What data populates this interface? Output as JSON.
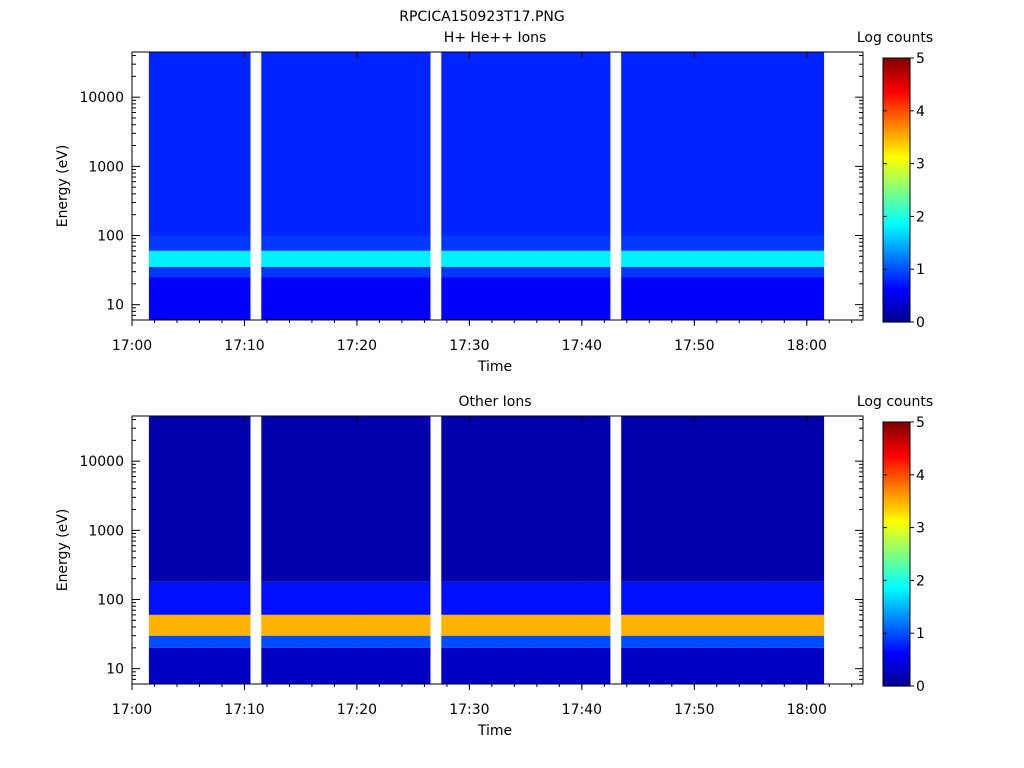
{
  "figure": {
    "title": "RPCICA150923T17.PNG"
  },
  "colors": {
    "background": "#ffffff",
    "colormap": [
      "#00008f",
      "#0000ff",
      "#0080ff",
      "#00ffff",
      "#80ff80",
      "#ffff00",
      "#ff8000",
      "#ff0000",
      "#800000"
    ]
  },
  "chart_data": [
    {
      "type": "heatmap",
      "title": "H+ He++ Ions",
      "xlabel": "Time",
      "ylabel": "Energy (eV)",
      "yscale": "log",
      "xlim": [
        "17:00",
        "18:05"
      ],
      "ylim": [
        6,
        45000
      ],
      "x_ticks": [
        "17:00",
        "17:10",
        "17:20",
        "17:30",
        "17:40",
        "17:50",
        "18:00"
      ],
      "y_ticks": [
        "10",
        "100",
        "1000",
        "10000"
      ],
      "colorbar": {
        "label": "Log counts",
        "range": [
          0,
          5
        ],
        "ticks": [
          "0",
          "1",
          "2",
          "3",
          "4",
          "5"
        ]
      },
      "time_columns": [
        "17:03",
        "17:06",
        "17:09",
        "17:13",
        "17:16",
        "17:19",
        "17:22",
        "17:25",
        "17:29",
        "17:32",
        "17:35",
        "17:38",
        "17:41",
        "17:45",
        "17:48",
        "17:51",
        "17:54",
        "17:57",
        "18:00"
      ],
      "energy_bands_eV": [
        {
          "range": [
            6,
            25
          ],
          "log_counts": 0.6
        },
        {
          "range": [
            25,
            35
          ],
          "log_counts": 0.9
        },
        {
          "range": [
            35,
            60
          ],
          "log_counts": 1.8
        },
        {
          "range": [
            60,
            100
          ],
          "log_counts": 0.9
        },
        {
          "range": [
            100,
            45000
          ],
          "log_counts": 0.8
        }
      ]
    },
    {
      "type": "heatmap",
      "title": "Other Ions",
      "xlabel": "Time",
      "ylabel": "Energy (eV)",
      "yscale": "log",
      "xlim": [
        "17:00",
        "18:05"
      ],
      "ylim": [
        6,
        45000
      ],
      "x_ticks": [
        "17:00",
        "17:10",
        "17:20",
        "17:30",
        "17:40",
        "17:50",
        "18:00"
      ],
      "y_ticks": [
        "10",
        "100",
        "1000",
        "10000"
      ],
      "colorbar": {
        "label": "Log counts",
        "range": [
          0,
          5
        ],
        "ticks": [
          "0",
          "1",
          "2",
          "3",
          "4",
          "5"
        ]
      },
      "time_columns": [
        "17:03",
        "17:06",
        "17:09",
        "17:13",
        "17:16",
        "17:19",
        "17:22",
        "17:25",
        "17:29",
        "17:32",
        "17:35",
        "17:38",
        "17:41",
        "17:45",
        "17:48",
        "17:51",
        "17:54",
        "17:57",
        "18:00"
      ],
      "energy_bands_eV": [
        {
          "range": [
            6,
            20
          ],
          "log_counts": 0.3
        },
        {
          "range": [
            20,
            30
          ],
          "log_counts": 1.0
        },
        {
          "range": [
            30,
            60
          ],
          "log_counts": 3.5
        },
        {
          "range": [
            60,
            180
          ],
          "log_counts": 0.7
        },
        {
          "range": [
            180,
            45000
          ],
          "log_counts": 0.15
        }
      ]
    }
  ]
}
